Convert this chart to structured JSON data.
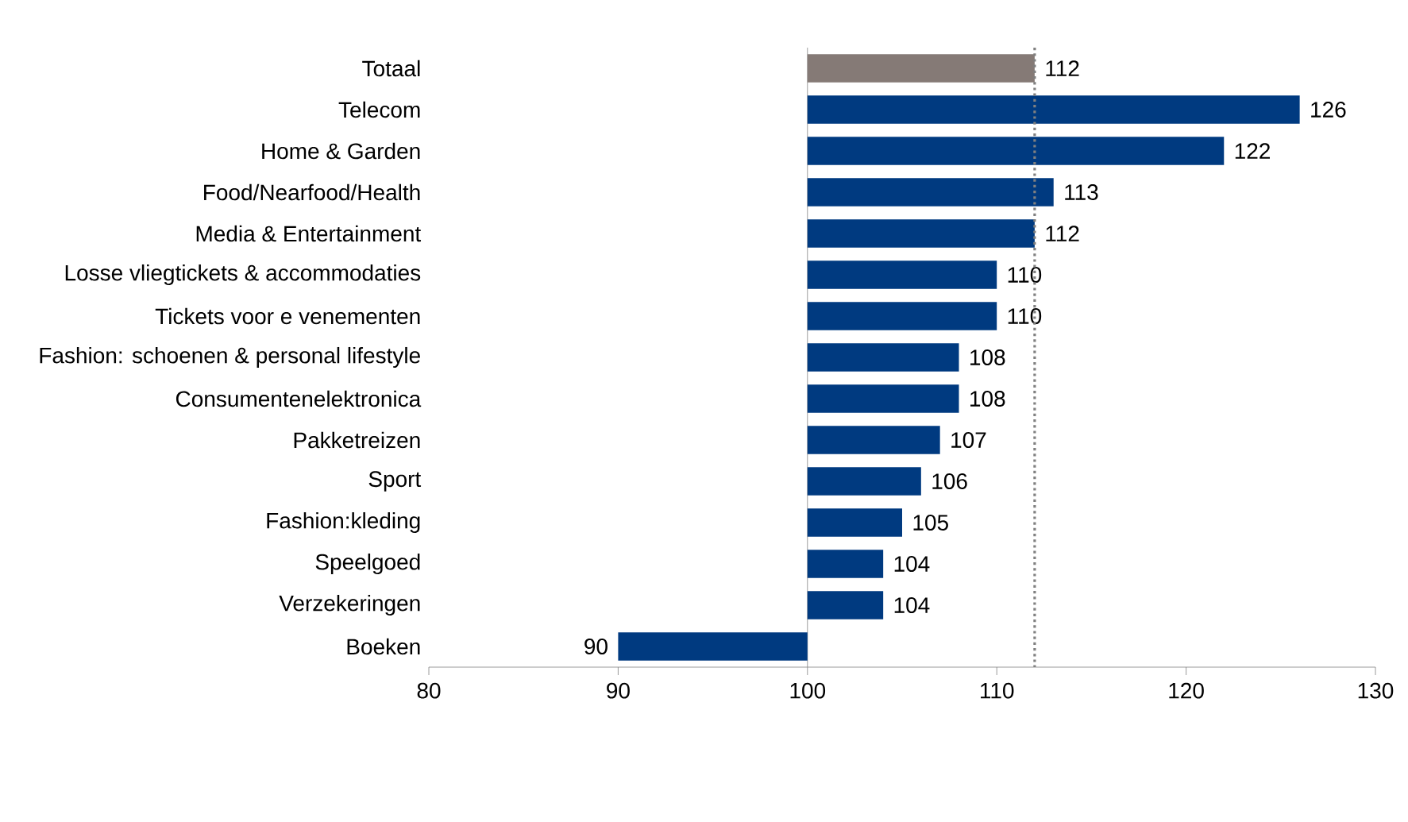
{
  "chart_data": {
    "type": "bar",
    "orientation": "horizontal",
    "categories": [
      "Totaal",
      "Telecom",
      "Home & Garden",
      "Food/Nearfood/Health",
      "Media & Entertainment",
      "Losse vliegtickets & accommodaties",
      "Tickets voor e venementen",
      "Fashion: schoenen & personal lifestyle",
      "Consumentenelektronica",
      "Pakketreizen",
      "Sport",
      "Fashion:kleding",
      "Speelgoed",
      "Verzekeringen",
      "Boeken"
    ],
    "base": [
      100,
      100,
      100,
      100,
      100,
      100,
      100,
      100,
      100,
      100,
      100,
      100,
      100,
      100,
      100
    ],
    "values": [
      12,
      26,
      22,
      13,
      12,
      10,
      10,
      8,
      8,
      7,
      6,
      5,
      4,
      4,
      -10
    ],
    "value_labels": [
      "112",
      "126",
      "122",
      "113",
      "112",
      "110",
      "110",
      "108",
      "108",
      "107",
      "106",
      "105",
      "104",
      "104",
      "90"
    ],
    "colors": [
      "#857a76",
      "#003a80",
      "#003a80",
      "#003a80",
      "#003a80",
      "#003a80",
      "#003a80",
      "#003a80",
      "#003a80",
      "#003a80",
      "#003a80",
      "#003a80",
      "#003a80",
      "#003a80",
      "#003a80"
    ],
    "xlim": [
      80,
      130
    ],
    "xticks": [
      80,
      90,
      100,
      110,
      120,
      130
    ],
    "ref_lines": [
      {
        "axis": "x",
        "value": 112,
        "color": "#808080",
        "line_style": "dotted"
      }
    ]
  }
}
